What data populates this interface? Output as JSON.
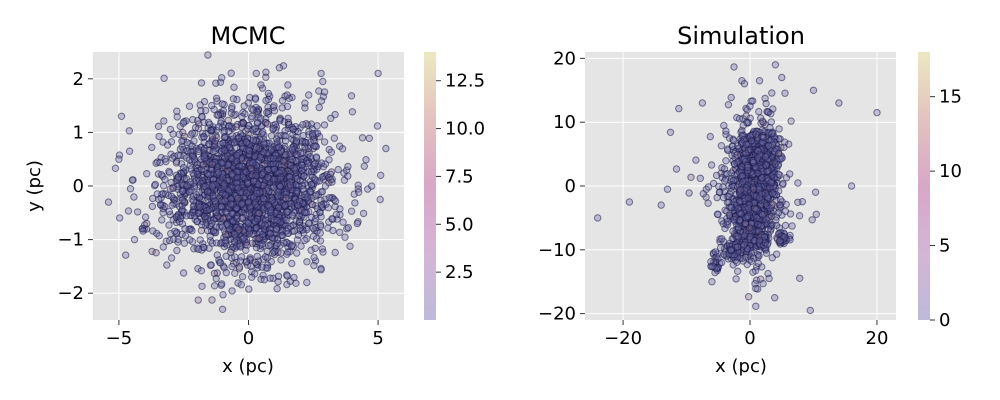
{
  "chart_data": [
    {
      "type": "scatter",
      "title": "MCMC",
      "xlabel": "x (pc)",
      "ylabel": "y (pc)",
      "xlim": [
        -6,
        6
      ],
      "ylim": [
        -2.5,
        2.5
      ],
      "xticks": [
        -5,
        0,
        5
      ],
      "xtick_labels": [
        "−5",
        "0",
        "5"
      ],
      "yticks": [
        -2,
        -1,
        0,
        1,
        2
      ],
      "ytick_labels": [
        "−2",
        "−1",
        "0",
        "1",
        "2"
      ],
      "grid": true,
      "colorbar": {
        "range": [
          0,
          14
        ],
        "ticks": [
          2.5,
          5.0,
          7.5,
          10.0,
          12.5
        ],
        "tick_labels": [
          "2.5",
          "5.0",
          "7.5",
          "10.0",
          "12.5"
        ]
      },
      "highlight_points": [
        {
          "x": -5.4,
          "y": -0.3
        },
        {
          "x": -4.9,
          "y": 1.3
        },
        {
          "x": -5.0,
          "y": 0.5
        },
        {
          "x": 5.0,
          "y": 2.1
        },
        {
          "x": 5.3,
          "y": 0.7
        },
        {
          "x": 5.1,
          "y": 0.2
        },
        {
          "x": -1.0,
          "y": -2.3
        },
        {
          "x": 0.3,
          "y": 2.1
        },
        {
          "x": 2.8,
          "y": 2.1
        },
        {
          "x": 4.2,
          "y": -0.7
        },
        {
          "x": 4.4,
          "y": 0.9
        },
        {
          "x": -4.4,
          "y": -1.0
        }
      ],
      "distribution": {
        "kind": "gaussian",
        "center": [
          0,
          0
        ],
        "sigma": [
          1.6,
          0.7
        ],
        "n_points": 2400
      }
    },
    {
      "type": "scatter",
      "title": "Simulation",
      "xlabel": "x (pc)",
      "ylabel": "",
      "xlim": [
        -26,
        23
      ],
      "ylim": [
        -21,
        21
      ],
      "xticks": [
        -20,
        0,
        20
      ],
      "xtick_labels": [
        "−20",
        "0",
        "20"
      ],
      "yticks": [
        -20,
        -10,
        0,
        10,
        20
      ],
      "ytick_labels": [
        "−20",
        "−10",
        "0",
        "10",
        "20"
      ],
      "grid": true,
      "colorbar": {
        "range": [
          0,
          18
        ],
        "ticks": [
          0,
          5,
          10,
          15
        ],
        "tick_labels": [
          "0",
          "5",
          "10",
          "15"
        ]
      },
      "highlight_points": [
        {
          "x": -24,
          "y": -5
        },
        {
          "x": -19,
          "y": -2.5
        },
        {
          "x": -14,
          "y": -3
        },
        {
          "x": -13,
          "y": -0.5
        },
        {
          "x": -7.5,
          "y": 13
        },
        {
          "x": 4,
          "y": 19
        },
        {
          "x": 5,
          "y": 17
        },
        {
          "x": 10,
          "y": 15
        },
        {
          "x": 14,
          "y": 13
        },
        {
          "x": 20,
          "y": 11.5
        },
        {
          "x": 16,
          "y": 0
        },
        {
          "x": 9.5,
          "y": -19.5
        },
        {
          "x": -6,
          "y": -15
        },
        {
          "x": 3,
          "y": -14.5
        },
        {
          "x": 0,
          "y": 12.5
        },
        {
          "x": 5.5,
          "y": -8
        },
        {
          "x": 4.5,
          "y": -7.5
        },
        {
          "x": 1.5,
          "y": -8.5
        },
        {
          "x": -4.5,
          "y": -12
        },
        {
          "x": -3,
          "y": -10
        },
        {
          "x": 1.5,
          "y": 16.5
        }
      ],
      "distribution": {
        "kind": "clusters",
        "n_points": 1400
      }
    }
  ],
  "colors": {
    "axes_background": "#e5e5e5",
    "grid": "#ffffff",
    "point_edge": "#1a1a4a",
    "point_fill": "#6d6ba6",
    "cmap": [
      "#bebad9",
      "#d4b5d6",
      "#d8a7c8",
      "#e3c2bf",
      "#ece8c1"
    ]
  }
}
